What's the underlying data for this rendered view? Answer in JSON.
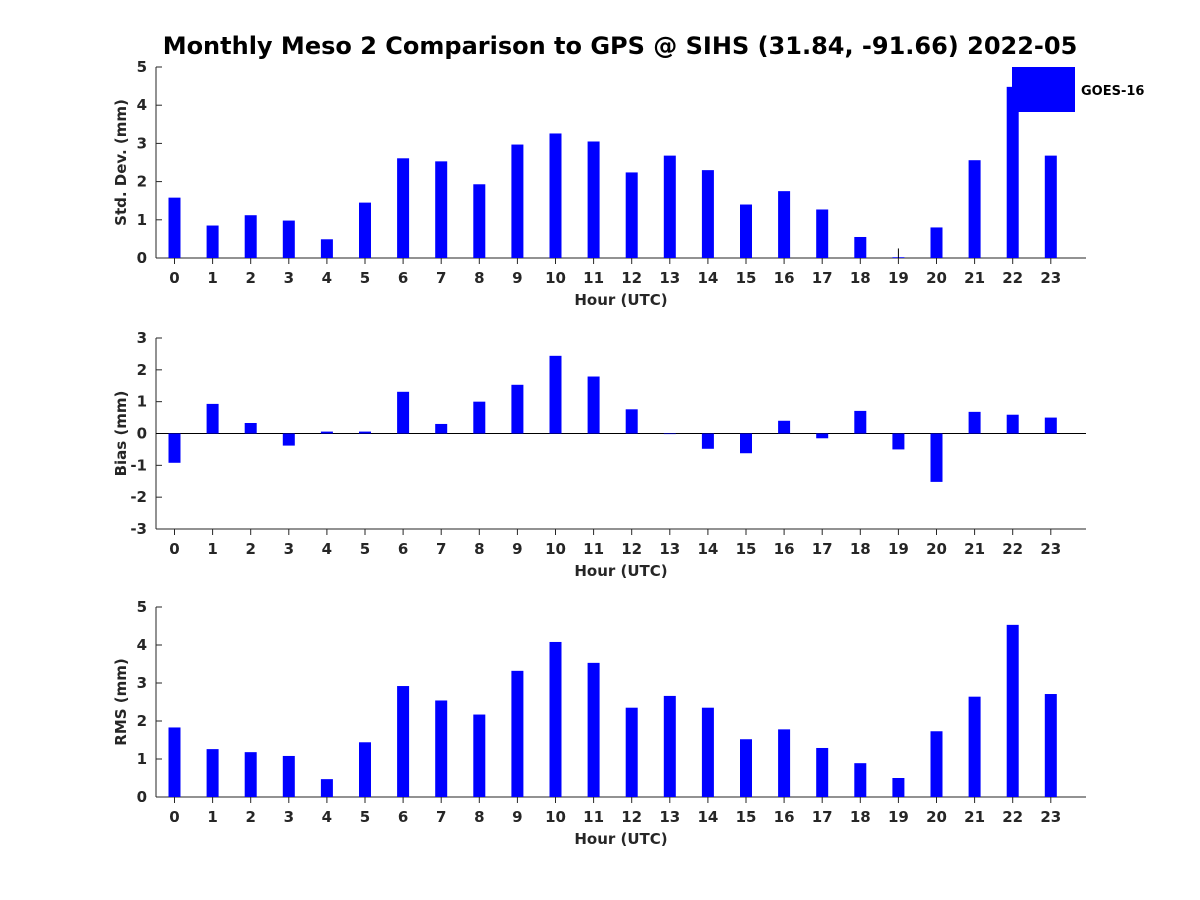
{
  "title": "Monthly Meso 2 Comparison to GPS @ SIHS (31.84, -91.66) 2022-05",
  "colors": {
    "bar": "#0000ff",
    "axis": "#262626"
  },
  "legend": {
    "label": "GOES-16",
    "placement": "top-right"
  },
  "chart_data": [
    {
      "type": "bar",
      "ylabel": "Std. Dev. (mm)",
      "xlabel": "Hour (UTC)",
      "ylim": [
        0,
        5
      ],
      "yticks": [
        0,
        1,
        2,
        3,
        4,
        5
      ],
      "categories": [
        "0",
        "1",
        "2",
        "3",
        "4",
        "5",
        "6",
        "7",
        "8",
        "9",
        "10",
        "11",
        "12",
        "13",
        "14",
        "15",
        "16",
        "17",
        "18",
        "19",
        "20",
        "21",
        "22",
        "23"
      ],
      "series": [
        {
          "name": "GOES-16",
          "values": [
            1.58,
            0.85,
            1.12,
            0.98,
            0.49,
            1.45,
            2.61,
            2.53,
            1.93,
            2.97,
            3.26,
            3.05,
            2.24,
            2.68,
            2.3,
            1.4,
            1.75,
            1.27,
            0.55,
            0.02,
            0.8,
            2.56,
            4.48,
            2.68
          ]
        }
      ],
      "error_bar": {
        "category": "19",
        "upper": 0.25
      }
    },
    {
      "type": "bar",
      "ylabel": "Bias (mm)",
      "xlabel": "Hour (UTC)",
      "ylim": [
        -3,
        3
      ],
      "yticks": [
        -3,
        -2,
        -1,
        0,
        1,
        2,
        3
      ],
      "zero_line": true,
      "categories": [
        "0",
        "1",
        "2",
        "3",
        "4",
        "5",
        "6",
        "7",
        "8",
        "9",
        "10",
        "11",
        "12",
        "13",
        "14",
        "15",
        "16",
        "17",
        "18",
        "19",
        "20",
        "21",
        "22",
        "23"
      ],
      "series": [
        {
          "name": "GOES-16",
          "values": [
            -0.92,
            0.93,
            0.33,
            -0.38,
            0.06,
            0.06,
            1.31,
            0.3,
            1.0,
            1.53,
            2.44,
            1.79,
            0.76,
            0.0,
            -0.48,
            -0.62,
            0.4,
            -0.15,
            0.71,
            -0.5,
            -1.52,
            0.68,
            0.59,
            0.5
          ]
        }
      ]
    },
    {
      "type": "bar",
      "ylabel": "RMS (mm)",
      "xlabel": "Hour (UTC)",
      "ylim": [
        0,
        5
      ],
      "yticks": [
        0,
        1,
        2,
        3,
        4,
        5
      ],
      "categories": [
        "0",
        "1",
        "2",
        "3",
        "4",
        "5",
        "6",
        "7",
        "8",
        "9",
        "10",
        "11",
        "12",
        "13",
        "14",
        "15",
        "16",
        "17",
        "18",
        "19",
        "20",
        "21",
        "22",
        "23"
      ],
      "series": [
        {
          "name": "GOES-16",
          "values": [
            1.83,
            1.26,
            1.18,
            1.08,
            0.47,
            1.44,
            2.92,
            2.54,
            2.17,
            3.32,
            4.08,
            3.53,
            2.35,
            2.66,
            2.35,
            1.52,
            1.78,
            1.29,
            0.89,
            0.5,
            1.73,
            2.64,
            4.53,
            2.71
          ]
        }
      ]
    }
  ]
}
